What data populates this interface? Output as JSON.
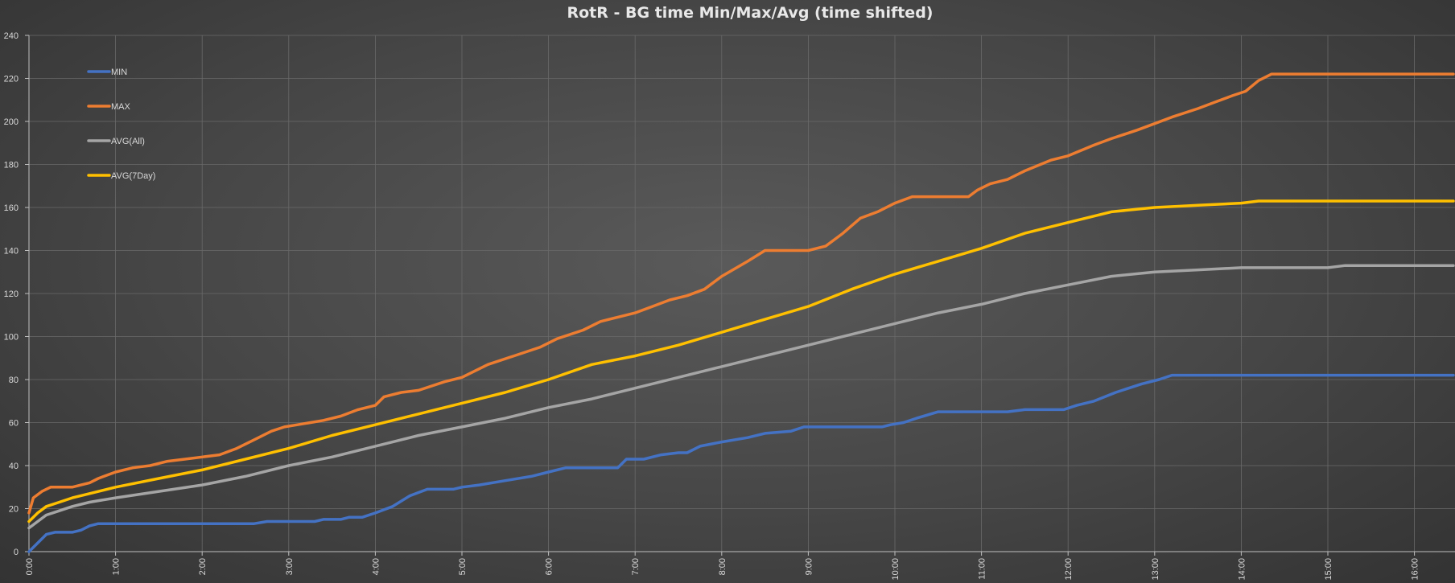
{
  "chart_data": {
    "type": "line",
    "title": "RotR - BG time Min/Max/Avg (time shifted)",
    "xlabel": "",
    "ylabel": "",
    "ylim": [
      0,
      240
    ],
    "yticks": [
      "0",
      "20",
      "40",
      "60",
      "80",
      "100",
      "120",
      "140",
      "160",
      "180",
      "200",
      "220",
      "240"
    ],
    "xticks": [
      "0:00",
      "1:00",
      "2:00",
      "3:00",
      "4:00",
      "5:00",
      "6:00",
      "7:00",
      "8:00",
      "9:00",
      "10:00",
      "11:00",
      "12:00",
      "13:00",
      "14:00",
      "15:00",
      "16:00"
    ],
    "x_unit": "hours",
    "xlim": [
      0,
      16.45
    ],
    "grid": true,
    "legend_position": "top-left",
    "series": [
      {
        "name": "MIN",
        "color": "#4472c4",
        "points": [
          [
            0,
            0
          ],
          [
            0.1,
            4
          ],
          [
            0.2,
            8
          ],
          [
            0.3,
            9
          ],
          [
            0.5,
            9
          ],
          [
            0.6,
            10
          ],
          [
            0.7,
            12
          ],
          [
            0.8,
            13
          ],
          [
            1.0,
            13
          ],
          [
            2.0,
            13
          ],
          [
            2.5,
            13
          ],
          [
            2.6,
            13
          ],
          [
            2.75,
            14
          ],
          [
            3.0,
            14
          ],
          [
            3.3,
            14
          ],
          [
            3.4,
            15
          ],
          [
            3.6,
            15
          ],
          [
            3.7,
            16
          ],
          [
            3.85,
            16
          ],
          [
            4.0,
            18
          ],
          [
            4.2,
            21
          ],
          [
            4.4,
            26
          ],
          [
            4.6,
            29
          ],
          [
            4.9,
            29
          ],
          [
            5.0,
            30
          ],
          [
            5.2,
            31
          ],
          [
            5.5,
            33
          ],
          [
            5.8,
            35
          ],
          [
            6.0,
            37
          ],
          [
            6.2,
            39
          ],
          [
            6.5,
            39
          ],
          [
            6.8,
            39
          ],
          [
            6.9,
            43
          ],
          [
            7.1,
            43
          ],
          [
            7.3,
            45
          ],
          [
            7.5,
            46
          ],
          [
            7.6,
            46
          ],
          [
            7.75,
            49
          ],
          [
            8.0,
            51
          ],
          [
            8.3,
            53
          ],
          [
            8.5,
            55
          ],
          [
            8.8,
            56
          ],
          [
            8.95,
            58
          ],
          [
            9.5,
            58
          ],
          [
            9.85,
            58
          ],
          [
            9.95,
            59
          ],
          [
            10.1,
            60
          ],
          [
            10.25,
            62
          ],
          [
            10.5,
            65
          ],
          [
            11.0,
            65
          ],
          [
            11.3,
            65
          ],
          [
            11.5,
            66
          ],
          [
            11.95,
            66
          ],
          [
            12.1,
            68
          ],
          [
            12.3,
            70
          ],
          [
            12.55,
            74
          ],
          [
            12.85,
            78
          ],
          [
            13.05,
            80
          ],
          [
            13.2,
            82
          ],
          [
            14.0,
            82
          ],
          [
            16.45,
            82
          ]
        ]
      },
      {
        "name": "MAX",
        "color": "#ed7d31",
        "points": [
          [
            0,
            18
          ],
          [
            0.05,
            25
          ],
          [
            0.15,
            28
          ],
          [
            0.25,
            30
          ],
          [
            0.5,
            30
          ],
          [
            0.6,
            31
          ],
          [
            0.7,
            32
          ],
          [
            0.8,
            34
          ],
          [
            1.0,
            37
          ],
          [
            1.2,
            39
          ],
          [
            1.4,
            40
          ],
          [
            1.6,
            42
          ],
          [
            1.8,
            43
          ],
          [
            2.0,
            44
          ],
          [
            2.2,
            45
          ],
          [
            2.4,
            48
          ],
          [
            2.6,
            52
          ],
          [
            2.8,
            56
          ],
          [
            2.95,
            58
          ],
          [
            3.1,
            59
          ],
          [
            3.4,
            61
          ],
          [
            3.6,
            63
          ],
          [
            3.8,
            66
          ],
          [
            4.0,
            68
          ],
          [
            4.1,
            72
          ],
          [
            4.3,
            74
          ],
          [
            4.5,
            75
          ],
          [
            4.8,
            79
          ],
          [
            5.0,
            81
          ],
          [
            5.15,
            84
          ],
          [
            5.3,
            87
          ],
          [
            5.6,
            91
          ],
          [
            5.9,
            95
          ],
          [
            6.1,
            99
          ],
          [
            6.4,
            103
          ],
          [
            6.6,
            107
          ],
          [
            6.8,
            109
          ],
          [
            7.0,
            111
          ],
          [
            7.2,
            114
          ],
          [
            7.4,
            117
          ],
          [
            7.6,
            119
          ],
          [
            7.8,
            122
          ],
          [
            8.0,
            128
          ],
          [
            8.3,
            135
          ],
          [
            8.5,
            140
          ],
          [
            8.8,
            140
          ],
          [
            9.0,
            140
          ],
          [
            9.2,
            142
          ],
          [
            9.4,
            148
          ],
          [
            9.6,
            155
          ],
          [
            9.8,
            158
          ],
          [
            10.0,
            162
          ],
          [
            10.2,
            165
          ],
          [
            10.5,
            165
          ],
          [
            10.85,
            165
          ],
          [
            10.95,
            168
          ],
          [
            11.1,
            171
          ],
          [
            11.3,
            173
          ],
          [
            11.5,
            177
          ],
          [
            11.8,
            182
          ],
          [
            12.0,
            184
          ],
          [
            12.3,
            189
          ],
          [
            12.5,
            192
          ],
          [
            12.8,
            196
          ],
          [
            13.0,
            199
          ],
          [
            13.2,
            202
          ],
          [
            13.5,
            206
          ],
          [
            13.7,
            209
          ],
          [
            13.9,
            212
          ],
          [
            14.05,
            214
          ],
          [
            14.2,
            219
          ],
          [
            14.35,
            222
          ],
          [
            14.5,
            222
          ],
          [
            16.45,
            222
          ]
        ]
      },
      {
        "name": "AVG(All)",
        "color": "#a5a5a5",
        "points": [
          [
            0,
            11
          ],
          [
            0.1,
            14
          ],
          [
            0.2,
            17
          ],
          [
            0.35,
            19
          ],
          [
            0.5,
            21
          ],
          [
            0.7,
            23
          ],
          [
            1.0,
            25
          ],
          [
            1.5,
            28
          ],
          [
            2.0,
            31
          ],
          [
            2.5,
            35
          ],
          [
            3.0,
            40
          ],
          [
            3.5,
            44
          ],
          [
            4.0,
            49
          ],
          [
            4.5,
            54
          ],
          [
            5.0,
            58
          ],
          [
            5.5,
            62
          ],
          [
            6.0,
            67
          ],
          [
            6.5,
            71
          ],
          [
            7.0,
            76
          ],
          [
            7.5,
            81
          ],
          [
            8.0,
            86
          ],
          [
            8.5,
            91
          ],
          [
            9.0,
            96
          ],
          [
            9.5,
            101
          ],
          [
            10.0,
            106
          ],
          [
            10.5,
            111
          ],
          [
            11.0,
            115
          ],
          [
            11.5,
            120
          ],
          [
            12.0,
            124
          ],
          [
            12.5,
            128
          ],
          [
            13.0,
            130
          ],
          [
            13.5,
            131
          ],
          [
            14.0,
            132
          ],
          [
            14.5,
            132
          ],
          [
            15.0,
            132
          ],
          [
            15.2,
            133
          ],
          [
            16.45,
            133
          ]
        ]
      },
      {
        "name": "AVG(7Day)",
        "color": "#ffc000",
        "points": [
          [
            0,
            14
          ],
          [
            0.1,
            18
          ],
          [
            0.2,
            21
          ],
          [
            0.35,
            23
          ],
          [
            0.5,
            25
          ],
          [
            0.7,
            27
          ],
          [
            1.0,
            30
          ],
          [
            1.5,
            34
          ],
          [
            2.0,
            38
          ],
          [
            2.5,
            43
          ],
          [
            3.0,
            48
          ],
          [
            3.5,
            54
          ],
          [
            4.0,
            59
          ],
          [
            4.5,
            64
          ],
          [
            5.0,
            69
          ],
          [
            5.5,
            74
          ],
          [
            6.0,
            80
          ],
          [
            6.5,
            87
          ],
          [
            7.0,
            91
          ],
          [
            7.5,
            96
          ],
          [
            8.0,
            102
          ],
          [
            8.5,
            108
          ],
          [
            9.0,
            114
          ],
          [
            9.5,
            122
          ],
          [
            10.0,
            129
          ],
          [
            10.5,
            135
          ],
          [
            11.0,
            141
          ],
          [
            11.5,
            148
          ],
          [
            12.0,
            153
          ],
          [
            12.5,
            158
          ],
          [
            13.0,
            160
          ],
          [
            13.5,
            161
          ],
          [
            14.0,
            162
          ],
          [
            14.2,
            163
          ],
          [
            14.5,
            163
          ],
          [
            16.45,
            163
          ]
        ]
      }
    ]
  }
}
